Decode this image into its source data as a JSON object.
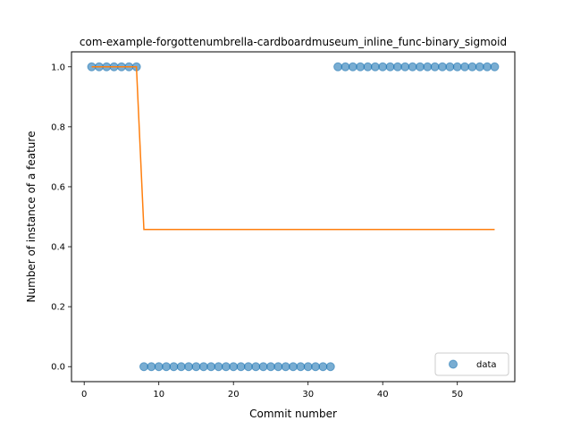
{
  "chart_data": {
    "type": "scatter",
    "title": "com-example-forgottenumbrella-cardboardmuseum_inline_func-binary_sigmoid",
    "xlabel": "Commit number",
    "ylabel": "Number of instance of a feature",
    "xlim": [
      -1.7,
      57.7
    ],
    "ylim": [
      -0.05,
      1.05
    ],
    "xticks": [
      0,
      10,
      20,
      30,
      40,
      50
    ],
    "yticks": [
      0.0,
      0.2,
      0.4,
      0.6,
      0.8,
      1.0
    ],
    "xtick_labels": [
      "0",
      "10",
      "20",
      "30",
      "40",
      "50"
    ],
    "ytick_labels": [
      "0.0",
      "0.2",
      "0.4",
      "0.6",
      "0.8",
      "1.0"
    ],
    "legend": {
      "position": "lower-right",
      "entries": [
        "data"
      ]
    },
    "grid": false,
    "series": [
      {
        "name": "data",
        "kind": "scatter",
        "color": "#1f77b4",
        "x": [
          1,
          2,
          3,
          4,
          5,
          6,
          7,
          8,
          9,
          10,
          11,
          12,
          13,
          14,
          15,
          16,
          17,
          18,
          19,
          20,
          21,
          22,
          23,
          24,
          25,
          26,
          27,
          28,
          29,
          30,
          31,
          32,
          33,
          34,
          35,
          36,
          37,
          38,
          39,
          40,
          41,
          42,
          43,
          44,
          45,
          46,
          47,
          48,
          49,
          50,
          51,
          52,
          53,
          54,
          55
        ],
        "y": [
          1,
          1,
          1,
          1,
          1,
          1,
          1,
          0,
          0,
          0,
          0,
          0,
          0,
          0,
          0,
          0,
          0,
          0,
          0,
          0,
          0,
          0,
          0,
          0,
          0,
          0,
          0,
          0,
          0,
          0,
          0,
          0,
          0,
          1,
          1,
          1,
          1,
          1,
          1,
          1,
          1,
          1,
          1,
          1,
          1,
          1,
          1,
          1,
          1,
          1,
          1,
          1,
          1,
          1,
          1
        ]
      },
      {
        "kind": "line",
        "color": "#ff7f0e",
        "x": [
          1,
          7,
          8,
          55
        ],
        "y": [
          1.0,
          1.0,
          0.4575,
          0.4575
        ]
      }
    ]
  }
}
